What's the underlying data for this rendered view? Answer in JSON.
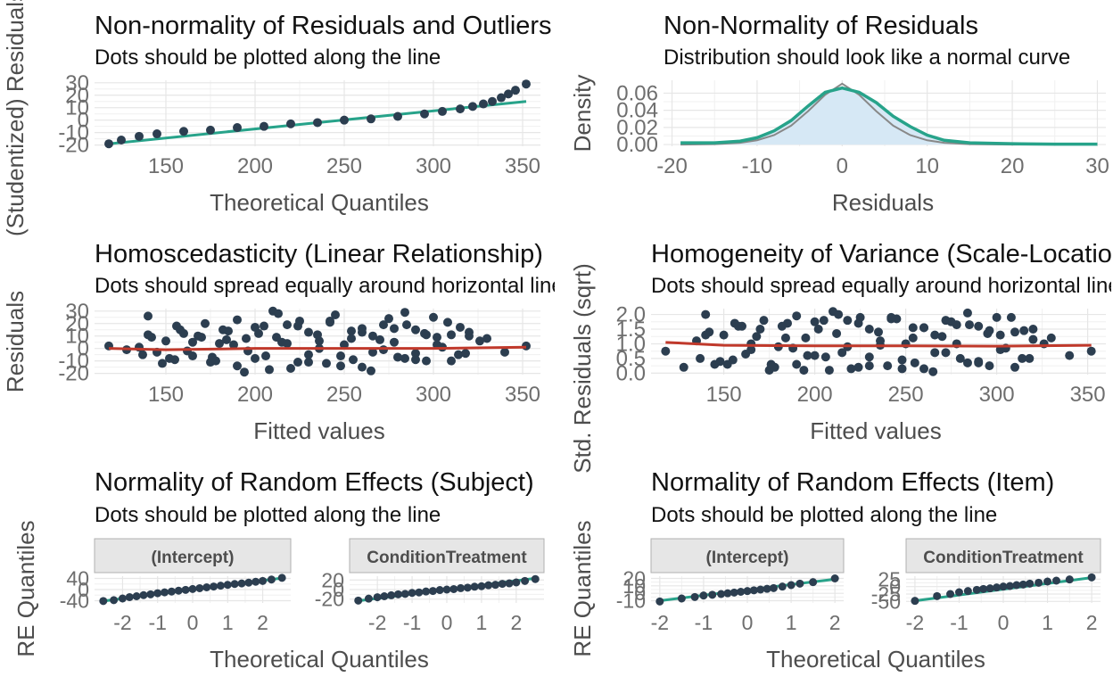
{
  "colors": {
    "point": "#2c3e50",
    "ref_line": "#27a38a",
    "loess": "#c0392b",
    "density_fill": "#d6e8f5",
    "density_line": "#27a38a",
    "normal_curve": "#888888",
    "grid": "#e6e6e6",
    "axis_text": "#6e6e6e",
    "label_text": "#4d4d4d",
    "title_text": "#111111",
    "strip_fill": "#e6e6e6",
    "strip_border": "#b0b0b0"
  },
  "chart_data": [
    {
      "id": "p1",
      "type": "scatter",
      "title": "Non-normality of Residuals and Outliers",
      "subtitle": "Dots should be plotted along the line",
      "xlabel": "Theoretical Quantiles",
      "ylabel": "(Studentized) Residuals",
      "xlim": [
        110,
        360
      ],
      "ylim": [
        -21,
        32
      ],
      "xticks": [
        150,
        200,
        250,
        300,
        350
      ],
      "yticks": [
        -20,
        -10,
        0,
        10,
        20,
        30
      ],
      "grid": true,
      "series": [
        {
          "role": "reference-line",
          "x": [
            118,
            352
          ],
          "y": [
            -19,
            15
          ]
        },
        {
          "role": "points",
          "x": [
            118,
            125,
            135,
            145,
            160,
            175,
            190,
            205,
            220,
            235,
            250,
            265,
            280,
            295,
            305,
            315,
            322,
            328,
            333,
            338,
            342,
            346,
            352
          ],
          "y": [
            -19,
            -16,
            -13,
            -11,
            -9,
            -8,
            -6,
            -5,
            -3,
            -2,
            0,
            1,
            3,
            5,
            7,
            9,
            11,
            13,
            15,
            18,
            21,
            24,
            29
          ]
        }
      ]
    },
    {
      "id": "p2",
      "type": "area",
      "title": "Non-Normality of Residuals",
      "subtitle": "Distribution should look like a normal curve",
      "xlabel": "Residuals",
      "ylabel": "Density",
      "xlim": [
        -21,
        31
      ],
      "ylim": [
        -0.002,
        0.075
      ],
      "xticks": [
        -20,
        -10,
        0,
        10,
        20,
        30
      ],
      "yticks": [
        0.0,
        0.02,
        0.04,
        0.06
      ],
      "ytick_labels": [
        "0.00",
        "0.02",
        "0.04",
        "0.06"
      ],
      "grid": true,
      "series": [
        {
          "role": "density",
          "x": [
            -19,
            -15,
            -12,
            -10,
            -8,
            -6,
            -4,
            -2,
            0,
            2,
            4,
            6,
            8,
            10,
            12,
            15,
            20,
            25,
            30
          ],
          "y": [
            0.002,
            0.002,
            0.004,
            0.008,
            0.016,
            0.028,
            0.045,
            0.061,
            0.066,
            0.061,
            0.049,
            0.033,
            0.021,
            0.011,
            0.005,
            0.002,
            0.001,
            0.0005,
            0.0005
          ]
        },
        {
          "role": "normal-curve",
          "x": [
            -19,
            -15,
            -12,
            -10,
            -8,
            -6,
            -4,
            -2,
            0,
            2,
            4,
            6,
            8,
            10,
            12,
            15,
            20,
            25,
            30
          ],
          "y": [
            0,
            0.0005,
            0.002,
            0.005,
            0.011,
            0.022,
            0.039,
            0.058,
            0.071,
            0.058,
            0.039,
            0.022,
            0.011,
            0.005,
            0.002,
            0.0005,
            0,
            0,
            0
          ]
        }
      ]
    },
    {
      "id": "p3",
      "type": "scatter",
      "title": "Homoscedasticity (Linear Relationship)",
      "subtitle": "Dots should spread equally around horizontal line",
      "xlabel": "Fitted values",
      "ylabel": "Residuals",
      "xlim": [
        110,
        360
      ],
      "ylim": [
        -21,
        32
      ],
      "xticks": [
        150,
        200,
        250,
        300,
        350
      ],
      "yticks": [
        -20,
        -10,
        0,
        10,
        20,
        30
      ],
      "grid": true,
      "series": [
        {
          "role": "loess",
          "x": [
            118,
            150,
            200,
            250,
            300,
            352
          ],
          "y": [
            0,
            -1,
            0,
            0,
            0,
            1
          ]
        },
        {
          "role": "points",
          "x": [
            118,
            128,
            135,
            140,
            145,
            150,
            155,
            160,
            165,
            170,
            175,
            180,
            185,
            190,
            195,
            200,
            205,
            210,
            215,
            220,
            225,
            230,
            235,
            240,
            245,
            250,
            255,
            260,
            265,
            270,
            275,
            280,
            285,
            290,
            295,
            300,
            305,
            310,
            315,
            320,
            330,
            340,
            352,
            137,
            142,
            152,
            158,
            165,
            172,
            178,
            184,
            190,
            196,
            202,
            208,
            213,
            218,
            224,
            230,
            236,
            242,
            248,
            254,
            260,
            266,
            272,
            278,
            284,
            290,
            296,
            302,
            308,
            314,
            320,
            326,
            140,
            148,
            156,
            162,
            168,
            176,
            182,
            188,
            194,
            200,
            206,
            212,
            218,
            224,
            230,
            236,
            242,
            248,
            254,
            260,
            266,
            272,
            278,
            284,
            290,
            296,
            302,
            310,
            318
          ],
          "y": [
            2,
            -1,
            1,
            26,
            -3,
            6,
            -9,
            12,
            -6,
            9,
            -11,
            4,
            14,
            -14,
            8,
            -8,
            18,
            30,
            5,
            -16,
            22,
            -5,
            11,
            -12,
            27,
            3,
            -9,
            16,
            -18,
            7,
            24,
            -7,
            19,
            -4,
            12,
            25,
            1,
            -10,
            17,
            10,
            8,
            -3,
            2,
            -5,
            9,
            -8,
            15,
            5,
            20,
            -10,
            7,
            23,
            -2,
            12,
            -17,
            28,
            4,
            18,
            -11,
            6,
            21,
            -6,
            14,
            -15,
            10,
            -1,
            16,
            29,
            -9,
            11,
            3,
            21,
            -5,
            13,
            6,
            11,
            -12,
            18,
            -2,
            10,
            -7,
            15,
            3,
            -19,
            17,
            -6,
            9,
            19,
            -11,
            13,
            0,
            22,
            -14,
            8,
            13,
            -3,
            19,
            5,
            -8,
            15,
            -10,
            9,
            11,
            -4
          ]
        }
      ]
    },
    {
      "id": "p4",
      "type": "scatter",
      "title": "Homogeneity of Variance (Scale-Location)",
      "subtitle": "Dots should spread equally around horizontal line",
      "xlabel": "Fitted values",
      "ylabel": "Std. Residuals (sqrt)",
      "xlim": [
        110,
        360
      ],
      "ylim": [
        -0.05,
        2.2
      ],
      "xticks": [
        150,
        200,
        250,
        300,
        350
      ],
      "yticks": [
        0.0,
        0.5,
        1.0,
        1.5,
        2.0
      ],
      "ytick_labels": [
        "0.0",
        "0.5",
        "1.0",
        "1.5",
        "2.0"
      ],
      "grid": true,
      "series": [
        {
          "role": "loess",
          "x": [
            118,
            150,
            200,
            250,
            300,
            352
          ],
          "y": [
            1.05,
            0.95,
            0.93,
            0.93,
            0.92,
            0.95
          ]
        },
        {
          "role": "points",
          "x": [
            118,
            128,
            135,
            140,
            145,
            150,
            155,
            160,
            165,
            170,
            175,
            180,
            185,
            190,
            195,
            200,
            205,
            210,
            215,
            220,
            225,
            230,
            235,
            240,
            245,
            250,
            255,
            260,
            265,
            270,
            275,
            280,
            285,
            290,
            295,
            300,
            305,
            310,
            315,
            320,
            330,
            340,
            352,
            137,
            142,
            152,
            158,
            165,
            172,
            178,
            184,
            190,
            196,
            202,
            208,
            213,
            218,
            224,
            230,
            236,
            242,
            248,
            254,
            260,
            266,
            272,
            278,
            284,
            290,
            296,
            302,
            308,
            314,
            320,
            326,
            140,
            148,
            156,
            162,
            168,
            176,
            182,
            188,
            194,
            200,
            206,
            212,
            218,
            224,
            230,
            236,
            242,
            248,
            254,
            260,
            266,
            272,
            278,
            284,
            290,
            296,
            302,
            310,
            318
          ],
          "y": [
            0.75,
            0.2,
            1.1,
            2.0,
            0.3,
            1.3,
            0.45,
            1.6,
            0.8,
            1.5,
            0.1,
            0.9,
            1.7,
            0.3,
            1.2,
            0.6,
            1.8,
            2.1,
            0.7,
            0.15,
            1.9,
            0.55,
            1.4,
            0.25,
            1.85,
            1.0,
            0.35,
            1.55,
            0.05,
            1.25,
            1.75,
            0.5,
            1.65,
            0.4,
            1.35,
            1.9,
            0.85,
            0.2,
            1.45,
            1.15,
            1.2,
            0.6,
            0.75,
            0.5,
            1.4,
            0.3,
            1.6,
            1.0,
            1.8,
            0.2,
            1.2,
            1.95,
            0.6,
            1.5,
            0.1,
            2.0,
            0.9,
            1.7,
            0.25,
            1.1,
            1.85,
            0.45,
            1.55,
            0.15,
            1.3,
            0.7,
            1.65,
            2.05,
            0.35,
            1.45,
            0.8,
            1.9,
            0.5,
            1.5,
            1.0,
            1.3,
            0.4,
            1.7,
            0.65,
            1.25,
            0.3,
            1.6,
            0.85,
            0.1,
            1.75,
            0.55,
            1.35,
            1.8,
            0.2,
            1.5,
            0.95,
            1.9,
            0.15,
            1.2,
            1.55,
            0.7,
            1.8,
            1.0,
            0.35,
            1.6,
            0.25,
            1.3,
            1.4,
            0.5
          ]
        }
      ]
    },
    {
      "id": "p5",
      "type": "scatter",
      "title": "Normality of Random Effects (Subject)",
      "subtitle": "Dots should be plotted along the line",
      "xlabel": "Theoretical Quantiles",
      "ylabel": "RE Quantiles",
      "facets": [
        {
          "strip": "(Intercept)",
          "xlim": [
            -2.8,
            2.8
          ],
          "ylim": [
            -48,
            48
          ],
          "xticks": [
            -2,
            -1,
            0,
            1,
            2
          ],
          "yticks": [
            -40,
            0,
            40
          ],
          "ref": {
            "x": [
              -2.6,
              2.6
            ],
            "y": [
              -42,
              42
            ]
          },
          "x": [
            -2.55,
            -2.25,
            -2.0,
            -1.8,
            -1.6,
            -1.4,
            -1.2,
            -1.0,
            -0.8,
            -0.6,
            -0.4,
            -0.2,
            0.0,
            0.2,
            0.4,
            0.6,
            0.8,
            1.0,
            1.2,
            1.4,
            1.6,
            1.8,
            2.0,
            2.25,
            2.55
          ],
          "y": [
            -41,
            -38,
            -32,
            -27,
            -24,
            -20,
            -17,
            -13,
            -10,
            -7,
            -4,
            -1,
            2,
            5,
            8,
            11,
            14,
            17,
            20,
            22,
            25,
            28,
            31,
            36,
            42
          ]
        },
        {
          "strip": "ConditionTreatment",
          "xlim": [
            -2.8,
            2.8
          ],
          "ylim": [
            -28,
            28
          ],
          "xticks": [
            -2,
            -1,
            0,
            1,
            2
          ],
          "yticks": [
            -20,
            0,
            20
          ],
          "ref": {
            "x": [
              -2.6,
              2.6
            ],
            "y": [
              -24,
              24
            ]
          },
          "x": [
            -2.55,
            -2.25,
            -2.0,
            -1.8,
            -1.6,
            -1.4,
            -1.2,
            -1.0,
            -0.8,
            -0.6,
            -0.4,
            -0.2,
            0.0,
            0.2,
            0.4,
            0.6,
            0.8,
            1.0,
            1.2,
            1.4,
            1.6,
            1.8,
            2.0,
            2.25,
            2.55
          ],
          "y": [
            -23,
            -19,
            -16,
            -14,
            -12,
            -10,
            -9,
            -7,
            -6,
            -4,
            -3,
            -1,
            0,
            1,
            3,
            4,
            6,
            7,
            9,
            10,
            12,
            13,
            15,
            18,
            22
          ]
        }
      ]
    },
    {
      "id": "p6",
      "type": "scatter",
      "title": "Normality of Random Effects (Item)",
      "subtitle": "Dots should be plotted along the line",
      "xlabel": "Theoretical Quantiles",
      "ylabel": "RE Quantiles",
      "facets": [
        {
          "strip": "(Intercept)",
          "xlim": [
            -2.2,
            2.2
          ],
          "ylim": [
            -13,
            23
          ],
          "xticks": [
            -2,
            -1,
            0,
            1,
            2
          ],
          "yticks": [
            -10,
            0,
            10,
            20
          ],
          "ref": {
            "x": [
              -2.0,
              2.0
            ],
            "y": [
              -10,
              19
            ]
          },
          "x": [
            -2.0,
            -1.5,
            -1.2,
            -1.0,
            -0.8,
            -0.6,
            -0.45,
            -0.3,
            -0.15,
            0.0,
            0.15,
            0.3,
            0.45,
            0.6,
            0.8,
            1.0,
            1.2,
            1.5,
            2.0
          ],
          "y": [
            -11,
            -7,
            -5,
            -3,
            -2,
            -1,
            0,
            1,
            2,
            3,
            4,
            5,
            6,
            7,
            9,
            11,
            13,
            15,
            20
          ]
        },
        {
          "strip": "ConditionTreatment",
          "xlim": [
            -2.2,
            2.2
          ],
          "ylim": [
            -55,
            35
          ],
          "xticks": [
            -2,
            -1,
            0,
            1,
            2
          ],
          "yticks": [
            -50,
            -25,
            0,
            25
          ],
          "ref": {
            "x": [
              -2.0,
              2.0
            ],
            "y": [
              -48,
              30
            ]
          },
          "x": [
            -2.0,
            -1.5,
            -1.2,
            -1.0,
            -0.8,
            -0.6,
            -0.45,
            -0.3,
            -0.15,
            0.0,
            0.15,
            0.3,
            0.45,
            0.6,
            0.8,
            1.0,
            1.2,
            1.5,
            2.0
          ],
          "y": [
            -48,
            -32,
            -25,
            -19,
            -15,
            -11,
            -8,
            -6,
            -3,
            0,
            2,
            5,
            7,
            10,
            13,
            17,
            20,
            24,
            31
          ]
        }
      ]
    }
  ]
}
